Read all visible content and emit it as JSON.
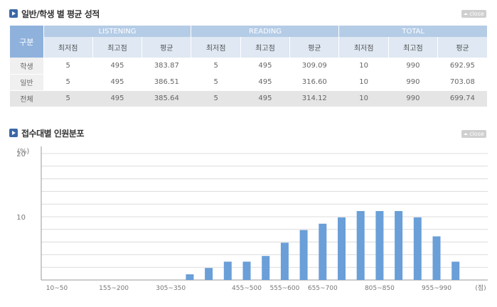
{
  "section1": {
    "title": "일반/학생 별 평균 성적",
    "close_label": "close"
  },
  "table": {
    "row_header": "구분",
    "groups": [
      "LISTENING",
      "READING",
      "TOTAL"
    ],
    "sub_headers": [
      "최저점",
      "최고점",
      "평균",
      "최저점",
      "최고점",
      "평균",
      "최저점",
      "최고점",
      "평균"
    ],
    "rows": [
      {
        "label": "학생",
        "cells": [
          "5",
          "495",
          "383.87",
          "5",
          "495",
          "309.09",
          "10",
          "990",
          "692.95"
        ]
      },
      {
        "label": "일반",
        "cells": [
          "5",
          "495",
          "386.51",
          "5",
          "495",
          "316.60",
          "10",
          "990",
          "703.08"
        ]
      },
      {
        "label": "전체",
        "cells": [
          "5",
          "495",
          "385.64",
          "5",
          "495",
          "314.12",
          "10",
          "990",
          "699.74"
        ]
      }
    ]
  },
  "section2": {
    "title": "접수대별 인원분포",
    "close_label": "close"
  },
  "colors": {
    "bar": "#6a9fd8",
    "header_blue": "#b5cce6",
    "accent": "#3a69a8"
  },
  "chart_data": {
    "type": "bar",
    "ylabel": "(%)",
    "xlabel": "(점)",
    "ylim": [
      0,
      20
    ],
    "yticks": [
      "10",
      "20"
    ],
    "xtick_labels": [
      "10~50",
      "155~200",
      "305~350",
      "455~500",
      "555~600",
      "655~700",
      "805~850",
      "955~990"
    ],
    "values": [
      0,
      0,
      0,
      0,
      0,
      0,
      0,
      0.9,
      1.9,
      2.9,
      2.9,
      3.8,
      5.9,
      7.9,
      8.9,
      9.9,
      10.9,
      10.9,
      10.9,
      9.9,
      6.9,
      2.9,
      0
    ],
    "grid": true
  }
}
